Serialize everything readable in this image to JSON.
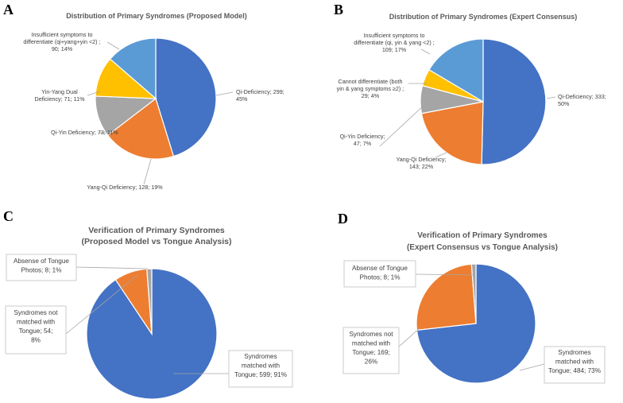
{
  "chart_data": [
    {
      "panel": "A",
      "type": "pie",
      "title": "Distribution of Primary Syndromes (Proposed Model)",
      "slices": [
        {
          "name": "Qi-Deficiency",
          "value": 299,
          "percent": "45%",
          "color": "#4472C4",
          "label_lines": [
            "Qi-Deficiency; 299;",
            "45%"
          ]
        },
        {
          "name": "Yang-Qi Deficiency",
          "value": 128,
          "percent": "19%",
          "color": "#ED7D31",
          "label_lines": [
            "Yang-Qi Deficiency; 128; 19%"
          ]
        },
        {
          "name": "Qi-Yin Deficiency",
          "value": 73,
          "percent": "11%",
          "color": "#A5A5A5",
          "label_lines": [
            "Qi-Yin Deficiency; 73; 11%"
          ]
        },
        {
          "name": "Yin-Yang Dual Deficiency",
          "value": 71,
          "percent": "11%",
          "color": "#FFC000",
          "label_lines": [
            "Yin-Yang Dual",
            "Deficiency; 71; 11%"
          ]
        },
        {
          "name": "Insufficient symptoms to differentiate (qi+yang+yin <2)",
          "value": 90,
          "percent": "14%",
          "color": "#5B9BD5",
          "label_lines": [
            "Insufficient symptoms to",
            "differentiate (qi+yang+yin <2) ;",
            "90; 14%"
          ]
        }
      ]
    },
    {
      "panel": "B",
      "type": "pie",
      "title": "Distribution of Primary Syndromes (Expert Consensus)",
      "slices": [
        {
          "name": "Qi-Deficiency",
          "value": 333,
          "percent": "50%",
          "color": "#4472C4",
          "label_lines": [
            "Qi-Deficiency; 333;",
            "50%"
          ]
        },
        {
          "name": "Yang-Qi Deficiency",
          "value": 143,
          "percent": "22%",
          "color": "#ED7D31",
          "label_lines": [
            "Yang-Qi Deficiency;",
            "143; 22%"
          ]
        },
        {
          "name": "Qi-Yin Deficiency",
          "value": 47,
          "percent": "7%",
          "color": "#A5A5A5",
          "label_lines": [
            "Qi-Yin Deficiency;",
            "47; 7%"
          ]
        },
        {
          "name": "Cannot differentiate (both yin & yang symptoms ≥2)",
          "value": 29,
          "percent": "4%",
          "color": "#FFC000",
          "label_lines": [
            "Cannot differentiate (both",
            "yin & yang symptoms ≥2) ;",
            "29; 4%"
          ]
        },
        {
          "name": "Insufficient symptoms to differentiate (qi, yin & yang <2)",
          "value": 109,
          "percent": "17%",
          "color": "#5B9BD5",
          "label_lines": [
            "Insufficient symptoms to",
            "differentiate (qi, yin & yang <2) ;",
            "109; 17%"
          ]
        }
      ]
    },
    {
      "panel": "C",
      "type": "pie",
      "title_lines": [
        "Verification of Primary Syndromes",
        "(Proposed Model  vs Tongue Analysis)"
      ],
      "slices": [
        {
          "name": "Syndromes matched with Tongue",
          "value": 599,
          "percent": "91%",
          "color": "#4472C4",
          "label_lines": [
            "Syndromes",
            "matched with",
            "Tongue; 599; 91%"
          ]
        },
        {
          "name": "Syndromes not matched with Tongue",
          "value": 54,
          "percent": "8%",
          "color": "#ED7D31",
          "label_lines": [
            "Syndromes not",
            "matched with",
            "Tongue; 54;",
            "8%"
          ]
        },
        {
          "name": "Absense of Tongue Photos",
          "value": 8,
          "percent": "1%",
          "color": "#A5A5A5",
          "label_lines": [
            "Absense of Tongue",
            "Photos; 8; 1%"
          ]
        }
      ]
    },
    {
      "panel": "D",
      "type": "pie",
      "title_lines": [
        "Verification of Primary Syndromes",
        "(Expert Consensus vs Tongue Analysis)"
      ],
      "slices": [
        {
          "name": "Syndromes matched with Tongue",
          "value": 484,
          "percent": "73%",
          "color": "#4472C4",
          "label_lines": [
            "Syndromes",
            "matched with",
            "Tongue; 484; 73%"
          ]
        },
        {
          "name": "Syndromes not matched with Tongue",
          "value": 169,
          "percent": "26%",
          "color": "#ED7D31",
          "label_lines": [
            "Syndromes not",
            "matched with",
            "Tongue; 169;",
            "26%"
          ]
        },
        {
          "name": "Absense of Tongue Photos",
          "value": 8,
          "percent": "1%",
          "color": "#A5A5A5",
          "label_lines": [
            "Absense of Tongue",
            "Photos; 8; 1%"
          ]
        }
      ]
    }
  ]
}
